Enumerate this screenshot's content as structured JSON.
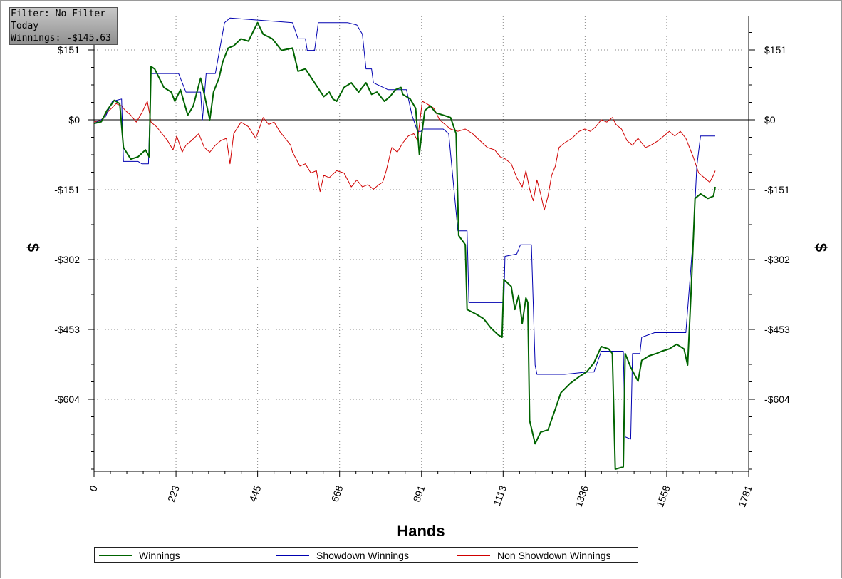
{
  "filter_box": {
    "line1": "Filter: No Filter",
    "line2": "Today",
    "line3": "Winnings: -$145.63"
  },
  "legend": [
    {
      "label": "Winnings",
      "color": "#006400"
    },
    {
      "label": "Showdown Winnings",
      "color": "#0000b0"
    },
    {
      "label": "Non Showdown Winnings",
      "color": "#d00000"
    }
  ],
  "chart_data": {
    "type": "line",
    "title": "",
    "xlabel": "Hands",
    "ylabel": "$",
    "xlim": [
      0,
      1781
    ],
    "ylim": [
      -755,
      225
    ],
    "x_ticks": [
      0,
      223,
      445,
      668,
      891,
      1113,
      1336,
      1558,
      1781
    ],
    "x_tick_labels": [
      "0",
      "223",
      "445",
      "668",
      "891",
      "1113",
      "1336",
      "1558",
      "1781"
    ],
    "y_ticks": [
      151,
      0,
      -151,
      -302,
      -453,
      -604
    ],
    "y_tick_labels": [
      "$151",
      "$0",
      "-$151",
      "-$302",
      "-$453",
      "-$604"
    ],
    "grid": true,
    "series": [
      {
        "name": "Winnings",
        "color": "#006400",
        "points": [
          [
            0,
            -8
          ],
          [
            20,
            -4
          ],
          [
            35,
            20
          ],
          [
            55,
            42
          ],
          [
            70,
            35
          ],
          [
            80,
            -60
          ],
          [
            100,
            -85
          ],
          [
            120,
            -80
          ],
          [
            140,
            -65
          ],
          [
            150,
            -80
          ],
          [
            155,
            115
          ],
          [
            165,
            110
          ],
          [
            190,
            70
          ],
          [
            210,
            60
          ],
          [
            220,
            40
          ],
          [
            235,
            65
          ],
          [
            255,
            10
          ],
          [
            270,
            30
          ],
          [
            290,
            90
          ],
          [
            300,
            55
          ],
          [
            315,
            0
          ],
          [
            325,
            60
          ],
          [
            340,
            90
          ],
          [
            350,
            125
          ],
          [
            365,
            155
          ],
          [
            380,
            160
          ],
          [
            400,
            175
          ],
          [
            420,
            170
          ],
          [
            445,
            210
          ],
          [
            460,
            185
          ],
          [
            485,
            175
          ],
          [
            510,
            150
          ],
          [
            540,
            155
          ],
          [
            555,
            105
          ],
          [
            575,
            110
          ],
          [
            600,
            80
          ],
          [
            625,
            50
          ],
          [
            640,
            60
          ],
          [
            650,
            45
          ],
          [
            660,
            40
          ],
          [
            680,
            70
          ],
          [
            700,
            80
          ],
          [
            720,
            60
          ],
          [
            740,
            80
          ],
          [
            755,
            55
          ],
          [
            770,
            60
          ],
          [
            790,
            40
          ],
          [
            805,
            50
          ],
          [
            820,
            65
          ],
          [
            835,
            70
          ],
          [
            840,
            55
          ],
          [
            850,
            50
          ],
          [
            860,
            45
          ],
          [
            875,
            25
          ],
          [
            885,
            -75
          ],
          [
            890,
            -40
          ],
          [
            900,
            20
          ],
          [
            915,
            30
          ],
          [
            930,
            15
          ],
          [
            950,
            10
          ],
          [
            970,
            5
          ],
          [
            985,
            -30
          ],
          [
            992,
            -250
          ],
          [
            1010,
            -270
          ],
          [
            1015,
            -410
          ],
          [
            1040,
            -420
          ],
          [
            1060,
            -430
          ],
          [
            1080,
            -450
          ],
          [
            1100,
            -465
          ],
          [
            1110,
            -470
          ],
          [
            1115,
            -345
          ],
          [
            1135,
            -360
          ],
          [
            1145,
            -410
          ],
          [
            1155,
            -380
          ],
          [
            1165,
            -440
          ],
          [
            1175,
            -385
          ],
          [
            1180,
            -395
          ],
          [
            1185,
            -650
          ],
          [
            1200,
            -700
          ],
          [
            1215,
            -675
          ],
          [
            1235,
            -670
          ],
          [
            1255,
            -625
          ],
          [
            1270,
            -590
          ],
          [
            1295,
            -570
          ],
          [
            1320,
            -555
          ],
          [
            1340,
            -545
          ],
          [
            1360,
            -525
          ],
          [
            1380,
            -490
          ],
          [
            1400,
            -495
          ],
          [
            1410,
            -505
          ],
          [
            1418,
            -755
          ],
          [
            1440,
            -750
          ],
          [
            1445,
            -505
          ],
          [
            1460,
            -535
          ],
          [
            1480,
            -565
          ],
          [
            1490,
            -520
          ],
          [
            1510,
            -510
          ],
          [
            1530,
            -505
          ],
          [
            1545,
            -500
          ],
          [
            1565,
            -495
          ],
          [
            1585,
            -485
          ],
          [
            1605,
            -495
          ],
          [
            1615,
            -530
          ],
          [
            1625,
            -360
          ],
          [
            1635,
            -170
          ],
          [
            1650,
            -160
          ],
          [
            1670,
            -170
          ],
          [
            1685,
            -165
          ],
          [
            1690,
            -145
          ]
        ]
      },
      {
        "name": "Showdown Winnings",
        "color": "#0000b0",
        "points": [
          [
            0,
            -8
          ],
          [
            30,
            5
          ],
          [
            50,
            40
          ],
          [
            75,
            45
          ],
          [
            80,
            -90
          ],
          [
            120,
            -90
          ],
          [
            130,
            -95
          ],
          [
            148,
            -95
          ],
          [
            155,
            100
          ],
          [
            195,
            100
          ],
          [
            230,
            100
          ],
          [
            250,
            60
          ],
          [
            290,
            60
          ],
          [
            295,
            0
          ],
          [
            305,
            100
          ],
          [
            330,
            100
          ],
          [
            355,
            210
          ],
          [
            370,
            220
          ],
          [
            540,
            210
          ],
          [
            555,
            175
          ],
          [
            575,
            175
          ],
          [
            580,
            150
          ],
          [
            600,
            150
          ],
          [
            610,
            210
          ],
          [
            690,
            210
          ],
          [
            715,
            205
          ],
          [
            730,
            185
          ],
          [
            740,
            110
          ],
          [
            755,
            110
          ],
          [
            760,
            80
          ],
          [
            800,
            65
          ],
          [
            850,
            65
          ],
          [
            865,
            10
          ],
          [
            880,
            -25
          ],
          [
            890,
            -25
          ],
          [
            895,
            -20
          ],
          [
            950,
            -20
          ],
          [
            965,
            -30
          ],
          [
            990,
            -240
          ],
          [
            1015,
            -240
          ],
          [
            1020,
            -395
          ],
          [
            1105,
            -395
          ],
          [
            1115,
            -395
          ],
          [
            1118,
            -295
          ],
          [
            1150,
            -290
          ],
          [
            1160,
            -270
          ],
          [
            1190,
            -270
          ],
          [
            1200,
            -530
          ],
          [
            1205,
            -550
          ],
          [
            1250,
            -550
          ],
          [
            1265,
            -550
          ],
          [
            1280,
            -550
          ],
          [
            1340,
            -545
          ],
          [
            1360,
            -545
          ],
          [
            1380,
            -500
          ],
          [
            1420,
            -500
          ],
          [
            1440,
            -500
          ],
          [
            1445,
            -685
          ],
          [
            1460,
            -690
          ],
          [
            1465,
            -505
          ],
          [
            1485,
            -505
          ],
          [
            1490,
            -470
          ],
          [
            1525,
            -460
          ],
          [
            1535,
            -460
          ],
          [
            1560,
            -460
          ],
          [
            1595,
            -460
          ],
          [
            1610,
            -460
          ],
          [
            1630,
            -255
          ],
          [
            1640,
            -100
          ],
          [
            1650,
            -35
          ],
          [
            1690,
            -35
          ]
        ]
      },
      {
        "name": "Non Showdown Winnings",
        "color": "#d00000",
        "points": [
          [
            0,
            -5
          ],
          [
            20,
            0
          ],
          [
            35,
            15
          ],
          [
            60,
            35
          ],
          [
            75,
            30
          ],
          [
            85,
            20
          ],
          [
            100,
            10
          ],
          [
            115,
            -5
          ],
          [
            130,
            15
          ],
          [
            145,
            40
          ],
          [
            155,
            -5
          ],
          [
            170,
            -15
          ],
          [
            185,
            -30
          ],
          [
            200,
            -45
          ],
          [
            215,
            -65
          ],
          [
            225,
            -35
          ],
          [
            240,
            -70
          ],
          [
            250,
            -55
          ],
          [
            265,
            -45
          ],
          [
            285,
            -30
          ],
          [
            300,
            -60
          ],
          [
            315,
            -70
          ],
          [
            330,
            -55
          ],
          [
            345,
            -45
          ],
          [
            360,
            -40
          ],
          [
            370,
            -95
          ],
          [
            380,
            -30
          ],
          [
            400,
            -5
          ],
          [
            420,
            -15
          ],
          [
            440,
            -40
          ],
          [
            460,
            5
          ],
          [
            475,
            -10
          ],
          [
            490,
            -5
          ],
          [
            505,
            -25
          ],
          [
            520,
            -40
          ],
          [
            535,
            -55
          ],
          [
            540,
            -70
          ],
          [
            560,
            -100
          ],
          [
            575,
            -95
          ],
          [
            590,
            -115
          ],
          [
            605,
            -110
          ],
          [
            615,
            -155
          ],
          [
            625,
            -120
          ],
          [
            640,
            -125
          ],
          [
            660,
            -110
          ],
          [
            680,
            -115
          ],
          [
            700,
            -145
          ],
          [
            715,
            -130
          ],
          [
            730,
            -145
          ],
          [
            745,
            -140
          ],
          [
            760,
            -150
          ],
          [
            775,
            -140
          ],
          [
            785,
            -135
          ],
          [
            795,
            -110
          ],
          [
            810,
            -60
          ],
          [
            825,
            -70
          ],
          [
            840,
            -50
          ],
          [
            855,
            -35
          ],
          [
            870,
            -30
          ],
          [
            880,
            -45
          ],
          [
            893,
            40
          ],
          [
            905,
            35
          ],
          [
            925,
            25
          ],
          [
            940,
            0
          ],
          [
            955,
            -10
          ],
          [
            970,
            -20
          ],
          [
            990,
            -25
          ],
          [
            1010,
            -20
          ],
          [
            1030,
            -30
          ],
          [
            1050,
            -45
          ],
          [
            1070,
            -60
          ],
          [
            1090,
            -65
          ],
          [
            1105,
            -80
          ],
          [
            1120,
            -85
          ],
          [
            1135,
            -95
          ],
          [
            1150,
            -125
          ],
          [
            1165,
            -145
          ],
          [
            1175,
            -110
          ],
          [
            1185,
            -150
          ],
          [
            1195,
            -175
          ],
          [
            1205,
            -130
          ],
          [
            1215,
            -160
          ],
          [
            1225,
            -195
          ],
          [
            1235,
            -165
          ],
          [
            1245,
            -120
          ],
          [
            1255,
            -100
          ],
          [
            1265,
            -60
          ],
          [
            1280,
            -50
          ],
          [
            1300,
            -40
          ],
          [
            1320,
            -25
          ],
          [
            1335,
            -20
          ],
          [
            1350,
            -25
          ],
          [
            1365,
            -15
          ],
          [
            1380,
            0
          ],
          [
            1395,
            -5
          ],
          [
            1410,
            5
          ],
          [
            1420,
            -10
          ],
          [
            1435,
            -20
          ],
          [
            1450,
            -45
          ],
          [
            1465,
            -55
          ],
          [
            1480,
            -40
          ],
          [
            1500,
            -60
          ],
          [
            1515,
            -55
          ],
          [
            1535,
            -45
          ],
          [
            1550,
            -35
          ],
          [
            1565,
            -25
          ],
          [
            1580,
            -35
          ],
          [
            1595,
            -25
          ],
          [
            1610,
            -40
          ],
          [
            1620,
            -60
          ],
          [
            1630,
            -80
          ],
          [
            1645,
            -115
          ],
          [
            1660,
            -125
          ],
          [
            1675,
            -135
          ],
          [
            1685,
            -120
          ],
          [
            1690,
            -110
          ]
        ]
      }
    ]
  }
}
